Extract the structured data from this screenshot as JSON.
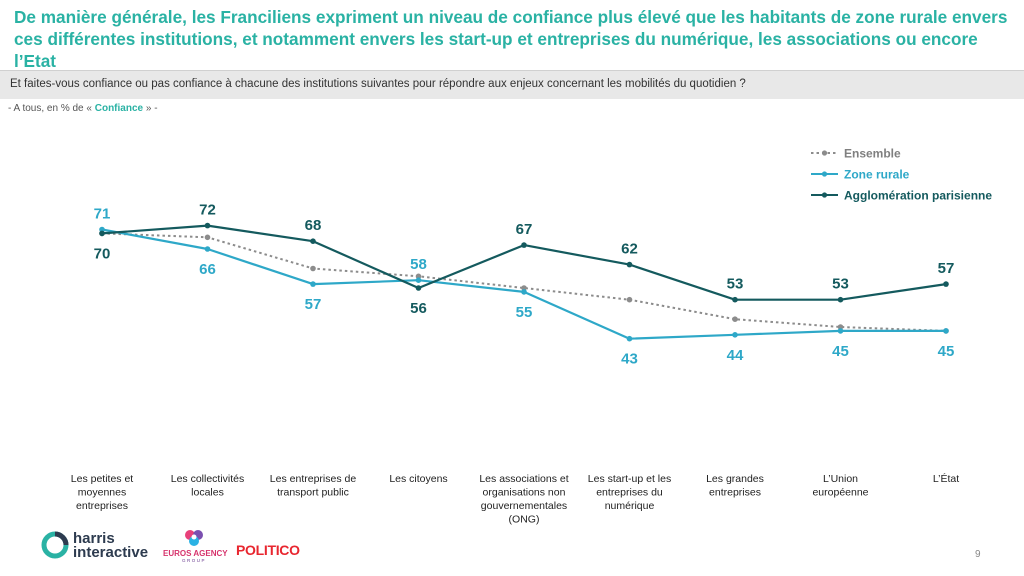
{
  "header": {
    "title": "De manière générale, les Franciliens expriment un niveau de confiance plus élevé que les habitants de zone rurale envers ces différentes institutions, et notamment envers les start-up et entreprises du numérique, les associations ou encore l’Etat"
  },
  "question": "Et faites-vous confiance ou pas confiance à chacune des institutions suivantes pour répondre aux enjeux concernant les mobilités du quotidien ?",
  "base_note": {
    "prefix": "- A tous, en % de « ",
    "highlight": "Confiance",
    "suffix": " » -"
  },
  "chart_data": {
    "type": "line",
    "categories": [
      "Les petites et moyennes entreprises",
      "Les collectivités locales",
      "Les entreprises de transport public",
      "Les citoyens",
      "Les associations et organisations non gouvernementales (ONG)",
      "Les start-up et les entreprises du numérique",
      "Les grandes entreprises",
      "L’Union européenne",
      "L’État"
    ],
    "category_lines": [
      [
        "Les petites et",
        "moyennes",
        "entreprises"
      ],
      [
        "Les collectivités",
        "locales"
      ],
      [
        "Les entreprises de",
        "transport public"
      ],
      [
        "Les citoyens"
      ],
      [
        "Les associations et",
        "organisations non",
        "gouvernementales",
        "(ONG)"
      ],
      [
        "Les start-up et les",
        "entreprises du",
        "numérique"
      ],
      [
        "Les grandes",
        "entreprises"
      ],
      [
        "L’Union",
        "européenne"
      ],
      [
        "L’État"
      ]
    ],
    "series": [
      {
        "name": "Ensemble",
        "values": [
          70,
          69,
          61,
          59,
          56,
          53,
          48,
          46,
          45
        ],
        "color": "#8c8c8c",
        "dashed": true,
        "labels_shown": false
      },
      {
        "name": "Zone rurale",
        "values": [
          71,
          66,
          57,
          58,
          55,
          43,
          44,
          45,
          45
        ],
        "color": "#2ea8c8",
        "dashed": false,
        "labels_shown": true,
        "label_positions": [
          "above",
          "below",
          "below",
          "above",
          "below",
          "below",
          "below",
          "below",
          "below"
        ]
      },
      {
        "name": "Agglomération parisienne",
        "values": [
          70,
          72,
          68,
          56,
          67,
          62,
          53,
          53,
          57
        ],
        "color": "#145a5e",
        "dashed": false,
        "labels_shown": true,
        "label_positions": [
          "below",
          "above",
          "above",
          "below",
          "above",
          "above",
          "above",
          "above",
          "above"
        ]
      }
    ],
    "ylim": [
      0,
      100
    ],
    "grid": false,
    "legend_position": "top-right"
  },
  "footer": {
    "page_number": "9",
    "logos": {
      "harris_line1": "harris",
      "harris_line2": "interactive",
      "euros": "EUROS AGENCY",
      "euros_sub": "GROUP",
      "politico": "POLITICO"
    }
  },
  "colors": {
    "accent": "#2ab2a4",
    "zone_rurale": "#2ea8c8",
    "agglomeration": "#145a5e",
    "ensemble": "#8c8c8c"
  }
}
